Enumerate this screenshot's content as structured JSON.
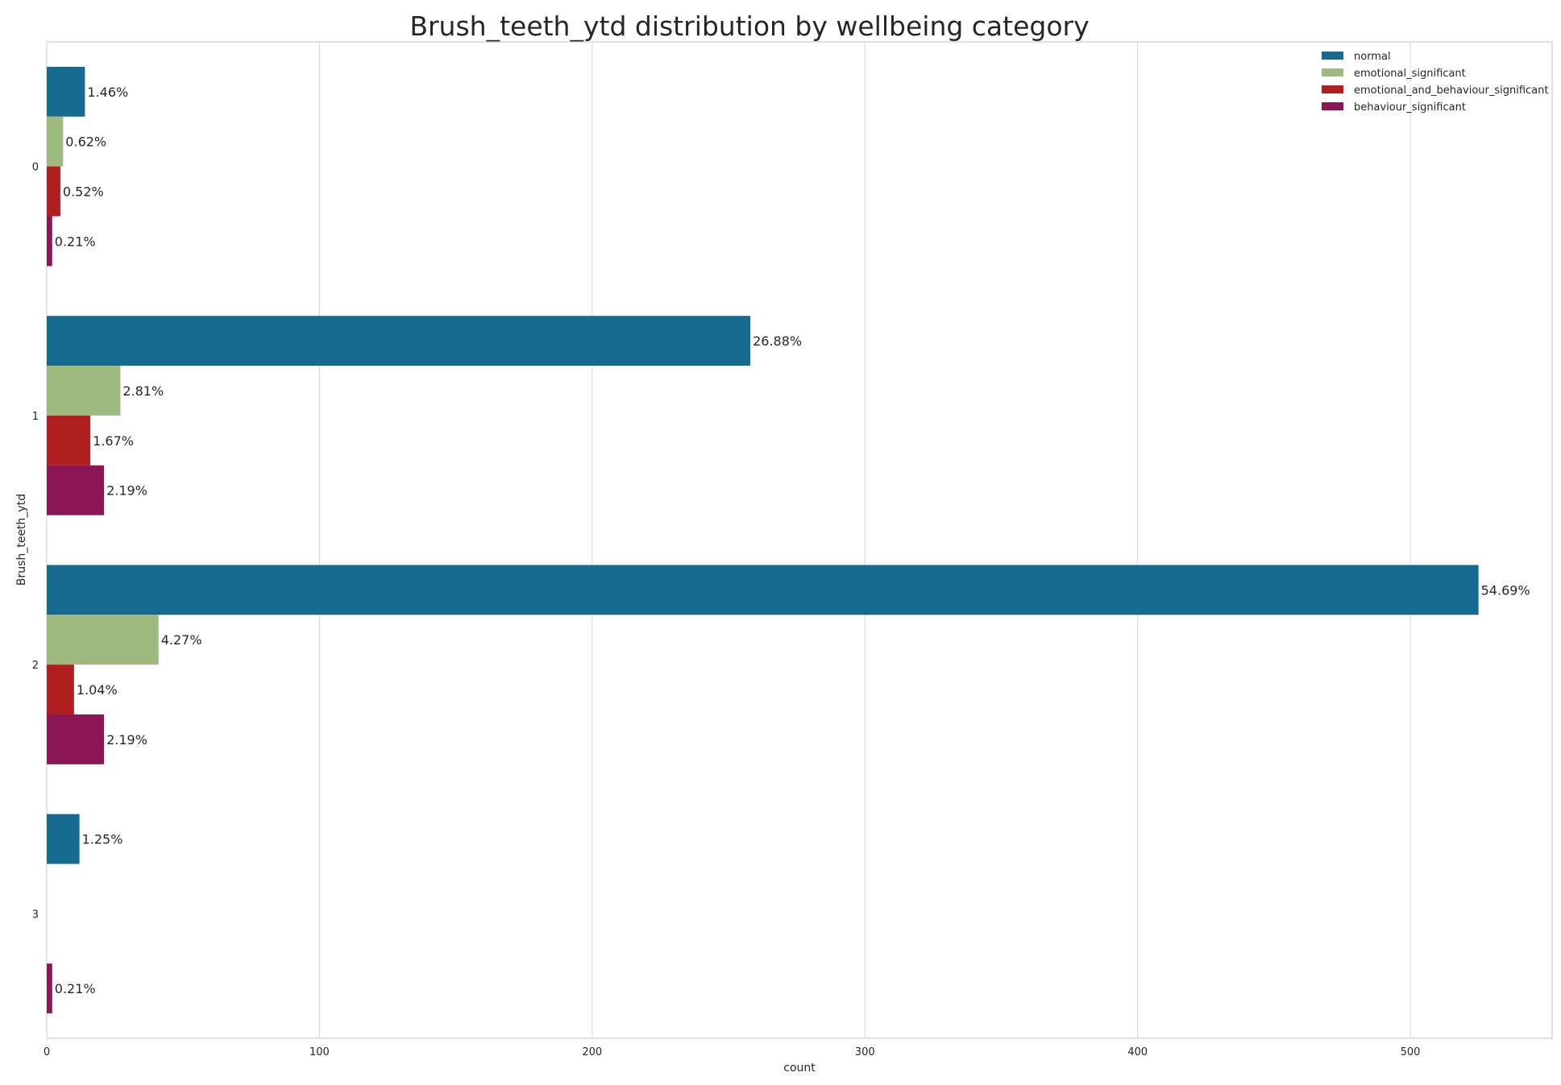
{
  "chart_data": {
    "type": "bar",
    "orientation": "horizontal",
    "title": "Brush_teeth_ytd distribution by wellbeing category",
    "xlabel": "count",
    "ylabel": "Brush_teeth_ytd",
    "xlim": [
      0,
      552
    ],
    "x_ticks": [
      "0",
      "100",
      "200",
      "300",
      "400",
      "500"
    ],
    "categories": [
      "0",
      "1",
      "2",
      "3"
    ],
    "grid": true,
    "legend_position": "top-right",
    "series": [
      {
        "name": "normal",
        "color": "#176a8f",
        "values": [
          14,
          258,
          525,
          12
        ],
        "labels": [
          "1.46%",
          "26.88%",
          "54.69%",
          "1.25%"
        ]
      },
      {
        "name": "emotional_significant",
        "color": "#9fba7e",
        "values": [
          6,
          27,
          41,
          0
        ],
        "labels": [
          "0.62%",
          "2.81%",
          "4.27%",
          ""
        ]
      },
      {
        "name": "emotional_and_behaviour_significant",
        "color": "#b01f1f",
        "values": [
          5,
          16,
          10,
          0
        ],
        "labels": [
          "0.52%",
          "1.67%",
          "1.04%",
          ""
        ]
      },
      {
        "name": "behaviour_significant",
        "color": "#8c1556",
        "values": [
          2,
          21,
          21,
          2
        ],
        "labels": [
          "0.21%",
          "2.19%",
          "2.19%",
          "0.21%"
        ]
      }
    ]
  }
}
